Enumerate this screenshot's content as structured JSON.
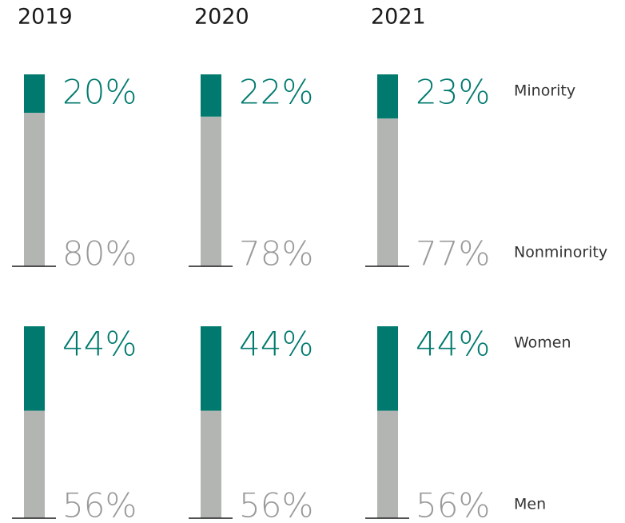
{
  "chart_data": {
    "type": "bar",
    "stacked": true,
    "categories": [
      "2019",
      "2020",
      "2021"
    ],
    "ylim": [
      0,
      100
    ],
    "panels": [
      {
        "series": [
          {
            "name": "Minority",
            "color": "#007a6e",
            "values": [
              20,
              22,
              23
            ],
            "value_labels": [
              "20%",
              "22%",
              "23%"
            ]
          },
          {
            "name": "Nonminority",
            "color": "#b3b5b3",
            "values": [
              80,
              78,
              77
            ],
            "value_labels": [
              "80%",
              "78%",
              "77%"
            ]
          }
        ]
      },
      {
        "series": [
          {
            "name": "Women",
            "color": "#007a6e",
            "values": [
              44,
              44,
              44
            ],
            "value_labels": [
              "44%",
              "44%",
              "44%"
            ]
          },
          {
            "name": "Men",
            "color": "#b3b5b3",
            "values": [
              56,
              56,
              56
            ],
            "value_labels": [
              "56%",
              "56%",
              "56%"
            ]
          }
        ]
      }
    ]
  }
}
